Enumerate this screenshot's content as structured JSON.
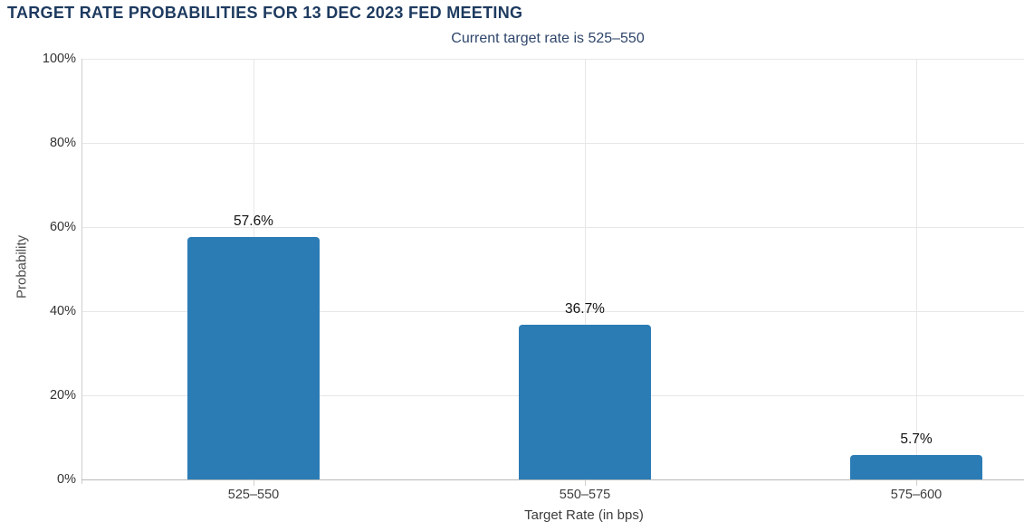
{
  "header": {
    "title": "TARGET RATE PROBABILITIES FOR 13 DEC 2023 FED MEETING",
    "subtitle": "Current target rate is 525–550"
  },
  "chart_data": {
    "type": "bar",
    "title": "TARGET RATE PROBABILITIES FOR 13 DEC 2023 FED MEETING",
    "subtitle": "Current target rate is 525–550",
    "categories": [
      "525–550",
      "550–575",
      "575–600"
    ],
    "values": [
      57.6,
      36.7,
      5.7
    ],
    "value_labels": [
      "57.6%",
      "36.7%",
      "5.7%"
    ],
    "xlabel": "Target Rate (in bps)",
    "ylabel": "Probability",
    "ylim": [
      0,
      100
    ],
    "ytick_values": [
      0,
      20,
      40,
      60,
      80,
      100
    ],
    "ytick_labels": [
      "0%",
      "20%",
      "40%",
      "60%",
      "80%",
      "100%"
    ],
    "grid": true,
    "vertical_gridlines_at_category_centers": true,
    "legend": "none",
    "bar_color": "#2b7cb5",
    "colors": {
      "title": "#1d3a5f",
      "subtitle": "#2f466b",
      "axis_text": "#3d3d3d",
      "ytick_text": "#333333",
      "ylabel_text": "#4d4d4d",
      "value_label": "#111111",
      "gridline": "#e7e7e7",
      "axis_line_y": "#cfcfcf",
      "axis_line_x": "#b9b9b9",
      "artifact": "#8ceee8"
    }
  }
}
